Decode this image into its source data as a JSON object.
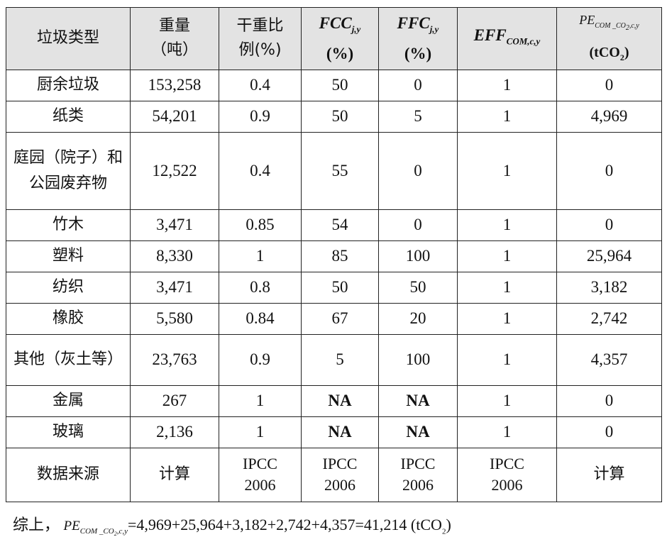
{
  "header": {
    "type": "垃圾类型",
    "weight": [
      "重量",
      "（吨）"
    ],
    "dry": [
      "干重比",
      "例(%)"
    ],
    "fcc": {
      "main": "FCC",
      "sub": "j,y",
      "unit": "(%)"
    },
    "ffc": {
      "main": "FFC",
      "sub": "j,y",
      "unit": "(%)"
    },
    "eff": {
      "main": "EFF",
      "sub": "COM,c,y"
    },
    "pe": {
      "main": "PE",
      "sub": "COM _CO",
      "sub2": "2",
      "sub3": ",c,y",
      "unit_a": "(tCO",
      "unit_sub": "2",
      "unit_b": ")"
    }
  },
  "rows": [
    {
      "type": "厨余垃圾",
      "weight": "153,258",
      "dry": "0.4",
      "fcc": "50",
      "ffc": "0",
      "eff": "1",
      "pe": "0"
    },
    {
      "type": "纸类",
      "weight": "54,201",
      "dry": "0.9",
      "fcc": "50",
      "ffc": "5",
      "eff": "1",
      "pe": "4,969"
    },
    {
      "type": "庭园（院子）和公园废弃物",
      "weight": "12,522",
      "dry": "0.4",
      "fcc": "55",
      "ffc": "0",
      "eff": "1",
      "pe": "0"
    },
    {
      "type": "竹木",
      "weight": "3,471",
      "dry": "0.85",
      "fcc": "54",
      "ffc": "0",
      "eff": "1",
      "pe": "0"
    },
    {
      "type": "塑料",
      "weight": "8,330",
      "dry": "1",
      "fcc": "85",
      "ffc": "100",
      "eff": "1",
      "pe": "25,964"
    },
    {
      "type": "纺织",
      "weight": "3,471",
      "dry": "0.8",
      "fcc": "50",
      "ffc": "50",
      "eff": "1",
      "pe": "3,182"
    },
    {
      "type": "橡胶",
      "weight": "5,580",
      "dry": "0.84",
      "fcc": "67",
      "ffc": "20",
      "eff": "1",
      "pe": "2,742"
    },
    {
      "type": "其他（灰土等）",
      "weight": "23,763",
      "dry": "0.9",
      "fcc": "5",
      "ffc": "100",
      "eff": "1",
      "pe": "4,357"
    },
    {
      "type": "金属",
      "weight": "267",
      "dry": "1",
      "fcc": "NA",
      "ffc": "NA",
      "eff": "1",
      "pe": "0"
    },
    {
      "type": "玻璃",
      "weight": "2,136",
      "dry": "1",
      "fcc": "NA",
      "ffc": "NA",
      "eff": "1",
      "pe": "0"
    }
  ],
  "source": {
    "type": "数据来源",
    "weight": "计算",
    "dry": "IPCC 2006",
    "fcc": "IPCC 2006",
    "ffc": "IPCC 2006",
    "eff": "IPCC 2006",
    "pe": "计算"
  },
  "summary": {
    "label": "综上，",
    "pe": "PE",
    "sub": "COM _CO",
    "sub2": "2",
    "sub3": ",c,y",
    "expr": "=4,969+25,964+3,182+2,742+4,357=41,214 (tCO",
    "unit_sub": "2",
    "end": ")"
  }
}
